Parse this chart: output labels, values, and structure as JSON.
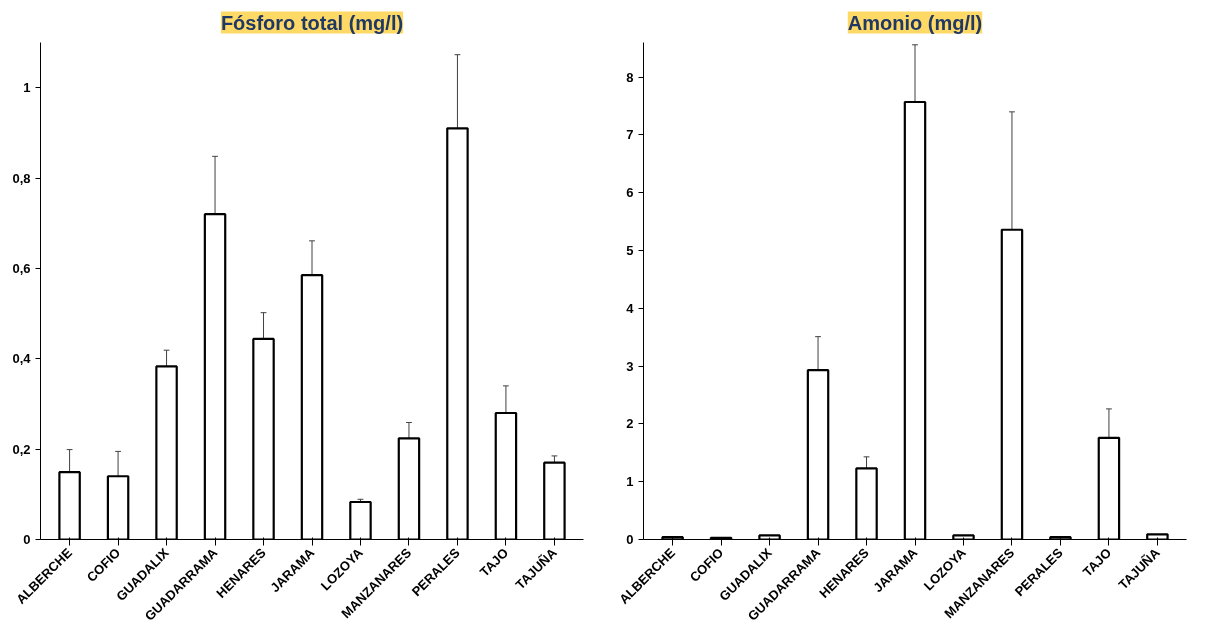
{
  "chart_data": [
    {
      "type": "bar",
      "title": "Fósforo total (mg/l)",
      "categories": [
        "ALBERCHE",
        "COFIO",
        "GUADALIX",
        "GUADARRAMA",
        "HENARES",
        "JARAMA",
        "LOZOYA",
        "MANZANARES",
        "PERALES",
        "TAJO",
        "TAJUÑA"
      ],
      "values": [
        0.149,
        0.14,
        0.383,
        0.72,
        0.444,
        0.585,
        0.083,
        0.224,
        0.91,
        0.28,
        0.17
      ],
      "errors": [
        0.05,
        0.055,
        0.036,
        0.128,
        0.058,
        0.076,
        0.006,
        0.035,
        0.163,
        0.06,
        0.015
      ],
      "color": "#ffffff",
      "ylim": [
        0,
        1.1
      ],
      "yticks": [
        0,
        {
          "value": 0.2,
          "label": "0,2"
        },
        {
          "value": 0.4,
          "label": "0,4"
        },
        {
          "value": 0.6,
          "label": "0,6"
        },
        {
          "value": 0.8,
          "label": "0,8"
        },
        1
      ],
      "grid": false
    },
    {
      "type": "bar",
      "title": "Amonio (mg/l)",
      "categories": [
        "ALBERCHE",
        "COFIO",
        "GUADALIX",
        "GUADARRAMA",
        "HENARES",
        "JARAMA",
        "LOZOYA",
        "MANZANARES",
        "PERALES",
        "TAJO",
        "TAJUÑA"
      ],
      "values": [
        0.04,
        0.03,
        0.07,
        2.93,
        1.23,
        7.57,
        0.07,
        5.36,
        0.04,
        1.76,
        0.09
      ],
      "errors": [
        null,
        null,
        null,
        0.58,
        0.2,
        0.99,
        null,
        2.04,
        null,
        0.5,
        null
      ],
      "color": "#ffffff",
      "ylim": [
        0,
        8.6
      ],
      "yticks": [
        0,
        1,
        2,
        3,
        4,
        5,
        6,
        7,
        8
      ],
      "grid": false
    }
  ]
}
